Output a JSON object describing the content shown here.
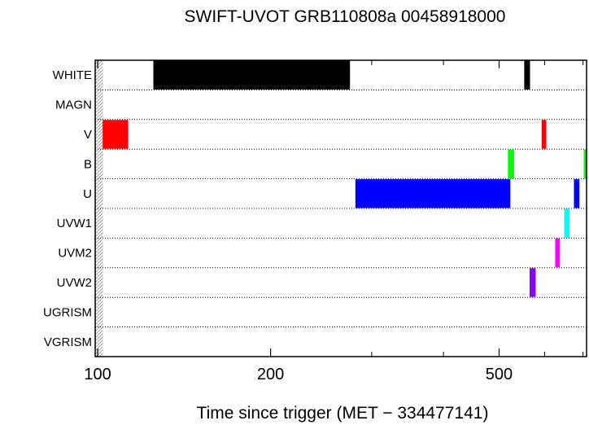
{
  "chart_data": {
    "type": "bar",
    "subtype": "timeline",
    "title": "SWIFT-UVOT GRB110808a 00458918000",
    "xlabel": "Time since trigger (MET − 334477141)",
    "ylabel": "",
    "xscale": "log",
    "xlim": [
      99,
      710
    ],
    "xticks": [
      {
        "value": 100,
        "label": "100"
      },
      {
        "value": 200,
        "label": "200"
      },
      {
        "value": 500,
        "label": "500"
      }
    ],
    "xminor_ticks": [
      300,
      400,
      600,
      700
    ],
    "categories": [
      "WHITE",
      "MAGN",
      "V",
      "B",
      "U",
      "UVW1",
      "UVM2",
      "UVW2",
      "UGRISM",
      "VGRISM"
    ],
    "grid": "horizontal dotted lines between filter rows",
    "segments": [
      {
        "filter": "WHITE",
        "start": 125,
        "end": 275,
        "color": "#000000"
      },
      {
        "filter": "WHITE",
        "start": 553,
        "end": 566,
        "color": "#000000"
      },
      {
        "filter": "V",
        "start": 102,
        "end": 113,
        "color": "#ff0000"
      },
      {
        "filter": "V",
        "start": 593,
        "end": 604,
        "color": "#ff0000"
      },
      {
        "filter": "B",
        "start": 518,
        "end": 531,
        "color": "#00ff00"
      },
      {
        "filter": "B",
        "start": 702,
        "end": 712,
        "color": "#00ff00"
      },
      {
        "filter": "U",
        "start": 281,
        "end": 523,
        "color": "#0000ff"
      },
      {
        "filter": "U",
        "start": 675,
        "end": 690,
        "color": "#0000ff"
      },
      {
        "filter": "UVW1",
        "start": 649,
        "end": 663,
        "color": "#00ffff"
      },
      {
        "filter": "UVM2",
        "start": 626,
        "end": 638,
        "color": "#ff00ff"
      },
      {
        "filter": "UVW2",
        "start": 565,
        "end": 579,
        "color": "#8800ff"
      }
    ]
  }
}
